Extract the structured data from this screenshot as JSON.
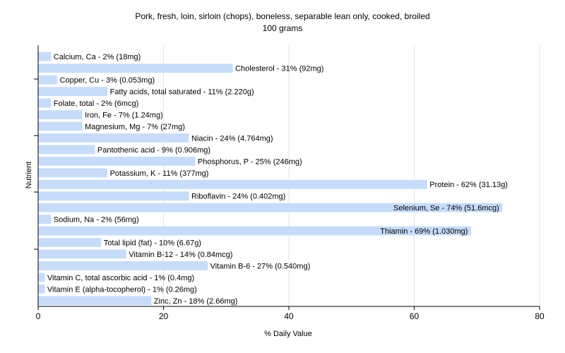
{
  "chart_data": {
    "type": "bar",
    "orientation": "horizontal",
    "title": "Pork, fresh, loin, sirloin (chops), boneless, separable lean only, cooked, broiled",
    "subtitle": "100 grams",
    "xlabel": "% Daily Value",
    "ylabel": "Nutrient",
    "xlim": [
      0,
      80
    ],
    "xticks": [
      "0",
      "20",
      "40",
      "60",
      "80"
    ],
    "grid": true,
    "bar_color": "#c6dcfa",
    "categories": [
      "Calcium, Ca",
      "Cholesterol",
      "Copper, Cu",
      "Fatty acids, total saturated",
      "Folate, total",
      "Iron, Fe",
      "Magnesium, Mg",
      "Niacin",
      "Pantothenic acid",
      "Phosphorus, P",
      "Potassium, K",
      "Protein",
      "Riboflavin",
      "Selenium, Se",
      "Sodium, Na",
      "Thiamin",
      "Total lipid (fat)",
      "Vitamin B-12",
      "Vitamin B-6",
      "Vitamin C, total ascorbic acid",
      "Vitamin E (alpha-tocopherol)",
      "Zinc, Zn"
    ],
    "values": [
      2,
      31,
      3,
      11,
      2,
      7,
      7,
      24,
      9,
      25,
      11,
      62,
      24,
      74,
      2,
      69,
      10,
      14,
      27,
      1,
      1,
      18
    ],
    "labels": [
      "Calcium, Ca - 2% (18mg)",
      "Cholesterol - 31% (92mg)",
      "Copper, Cu - 3% (0.053mg)",
      "Fatty acids, total saturated - 11% (2.220g)",
      "Folate, total - 2% (6mcg)",
      "Iron, Fe - 7% (1.24mg)",
      "Magnesium, Mg - 7% (27mg)",
      "Niacin - 24% (4.764mg)",
      "Pantothenic acid - 9% (0.906mg)",
      "Phosphorus, P - 25% (246mg)",
      "Potassium, K - 11% (377mg)",
      "Protein - 62% (31.13g)",
      "Riboflavin - 24% (0.402mg)",
      "Selenium, Se - 74% (51.6mcg)",
      "Sodium, Na - 2% (56mg)",
      "Thiamin - 69% (1.030mg)",
      "Total lipid (fat) - 10% (6.67g)",
      "Vitamin B-12 - 14% (0.84mcg)",
      "Vitamin B-6 - 27% (0.540mg)",
      "Vitamin C, total ascorbic acid - 1% (0.4mg)",
      "Vitamin E (alpha-tocopherol) - 1% (0.26mg)",
      "Zinc, Zn - 18% (2.66mg)"
    ]
  }
}
